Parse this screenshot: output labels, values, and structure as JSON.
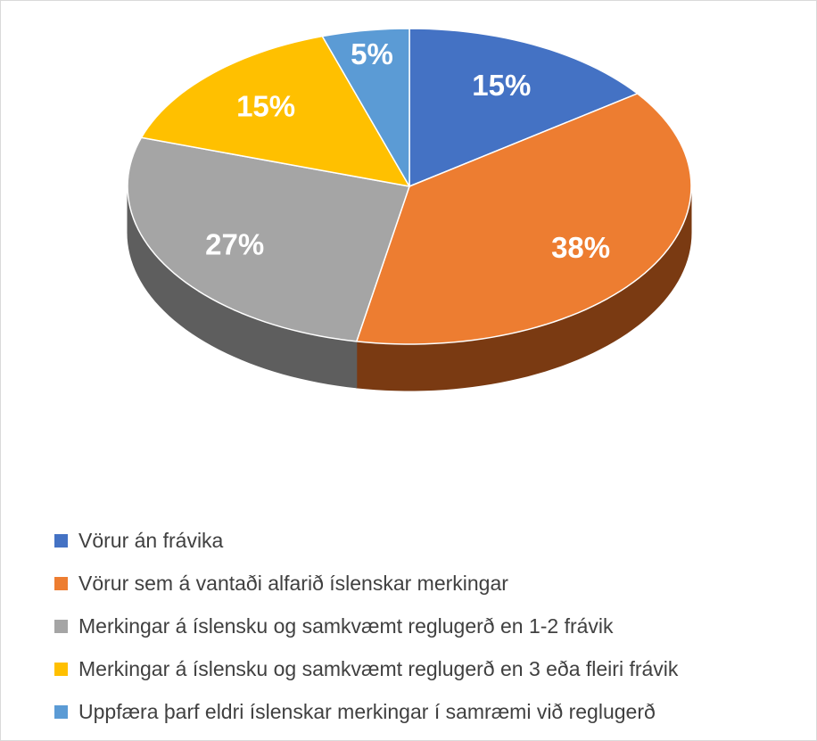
{
  "chart_data": {
    "type": "pie",
    "style": "3d",
    "title": "",
    "categories": [
      "Vörur án frávika",
      "Vörur sem á vantaði alfarið íslenskar merkingar",
      "Merkingar á íslensku og samkvæmt reglugerð en 1-2 frávik",
      "Merkingar á íslensku og samkvæmt reglugerð en 3 eða fleiri frávik",
      "Uppfæra þarf eldri íslenskar merkingar í samræmi við reglugerð"
    ],
    "values": [
      15,
      38,
      27,
      15,
      5
    ],
    "data_labels": [
      "15%",
      "38%",
      "27%",
      "15%",
      "5%"
    ],
    "colors": [
      "#4472C4",
      "#ED7D31",
      "#A5A5A5",
      "#FFC000",
      "#5B9BD5"
    ],
    "side_colors": [
      "#2B4A80",
      "#7A3A12",
      "#5E5E5E",
      "#9A7400",
      "#35618A"
    ],
    "legend_position": "bottom-left"
  }
}
